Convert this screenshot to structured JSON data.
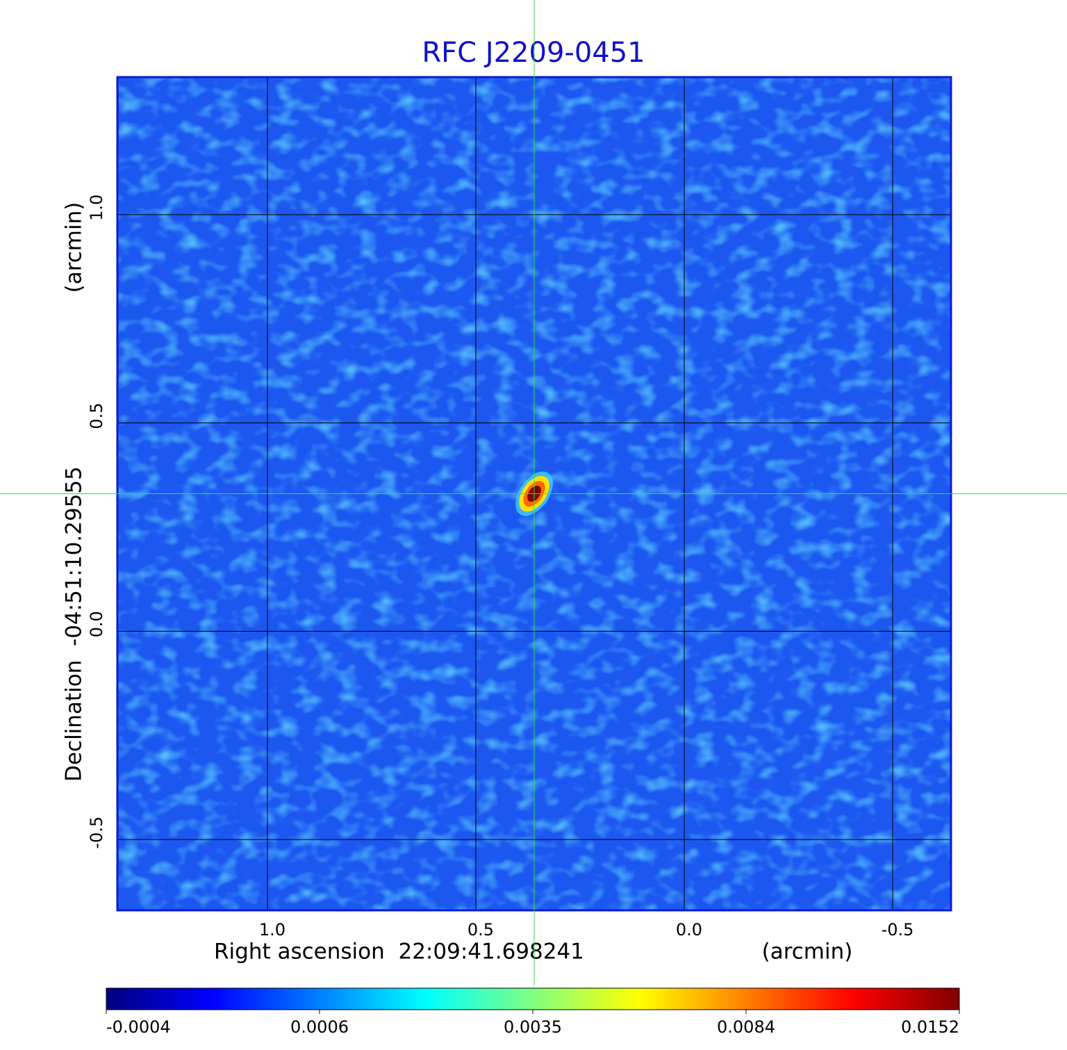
{
  "chart_data": {
    "type": "image",
    "title": "RFC J2209-0451",
    "xlabel": "Right ascension  22:09:41.698241",
    "xunit": "(arcmin)",
    "ylabel": "Declination  -04:51:10.29555",
    "yunit": "(arcmin)",
    "xlim": [
      1.36,
      -0.64
    ],
    "ylim": [
      -0.67,
      1.33
    ],
    "xticks": [
      {
        "value": 1,
        "label": "1.0"
      },
      0.5,
      {
        "value": 0,
        "label": "0.0"
      },
      -0.5
    ],
    "yticks": [
      -0.5,
      {
        "value": 0,
        "label": "0.0"
      },
      0.5,
      {
        "value": 1,
        "label": "1.0"
      }
    ],
    "grid": true,
    "colorbar_ticks": [
      -0.0004,
      0.0006,
      0.0035,
      0.0084,
      0.0152
    ],
    "peak": {
      "x": 0.36,
      "y": 0.33,
      "value": 0.0152
    }
  }
}
